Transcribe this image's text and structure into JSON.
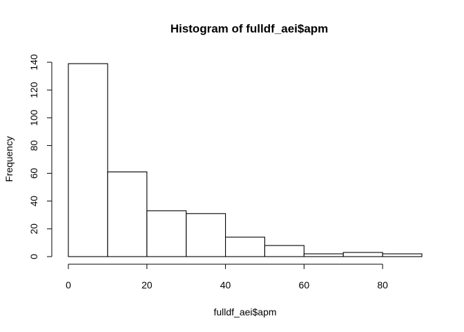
{
  "chart_data": {
    "type": "bar",
    "title": "Histogram of fulldf_aei$apm",
    "xlabel": "fulldf_aei$apm",
    "ylabel": "Frequency",
    "bin_edges": [
      0,
      10,
      20,
      30,
      40,
      50,
      60,
      70,
      80,
      90
    ],
    "values": [
      139,
      61,
      33,
      31,
      14,
      8,
      2,
      3,
      2
    ],
    "xlim": [
      0,
      90
    ],
    "ylim": [
      0,
      140
    ],
    "x_ticks": [
      0,
      20,
      40,
      60,
      80
    ],
    "y_ticks": [
      0,
      20,
      40,
      60,
      80,
      100,
      120,
      140
    ],
    "grid": false,
    "colors": {
      "bar_fill": "#ffffff",
      "bar_stroke": "#000000"
    }
  }
}
